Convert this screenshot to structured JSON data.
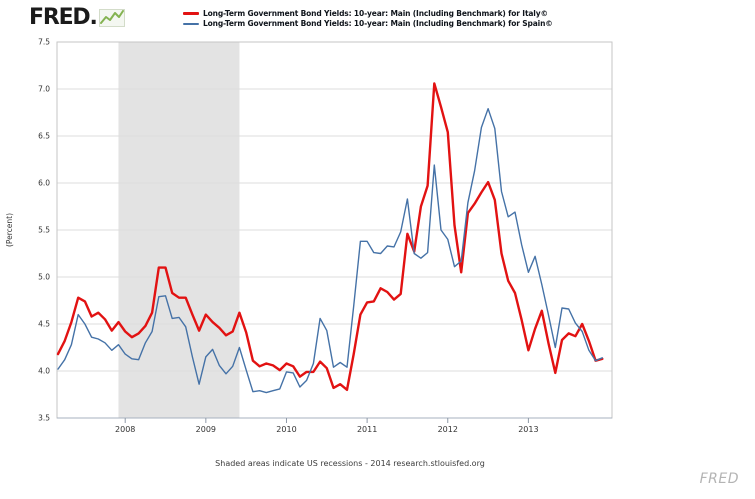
{
  "header": {
    "logo_text": "FRED."
  },
  "legend": {
    "items": [
      {
        "key": "italy",
        "label": "Long-Term Government Bond Yields: 10-year: Main (Including Benchmark) for Italy©",
        "color": "#e21212"
      },
      {
        "key": "spain",
        "label": "Long-Term Government Bond Yields: 10-year: Main (Including Benchmark) for Spain©",
        "color": "#4572a7"
      }
    ]
  },
  "footer": {
    "note": "Shaded areas indicate US recessions - 2014 research.stlouisfed.org"
  },
  "watermark": "FRED",
  "chart_data": {
    "type": "line",
    "title": "",
    "xlabel": "",
    "ylabel": "(Percent)",
    "ylim": [
      3.5,
      7.5
    ],
    "ytick_step": 0.5,
    "grid": true,
    "legend_position": "top",
    "frequency": "monthly",
    "x_start": "2007-03",
    "x_end": "2013-12",
    "x_year_ticks": [
      2008,
      2009,
      2010,
      2011,
      2012,
      2013
    ],
    "recession_band": {
      "start": "2007-12",
      "end": "2009-06",
      "color": "#e3e3e3"
    },
    "series": [
      {
        "key": "italy",
        "name": "Long-Term Government Bond Yields: 10-year: Main (Including Benchmark) for Italy©",
        "color": "#e21212",
        "width": 2.4,
        "values": [
          4.18,
          4.32,
          4.52,
          4.78,
          4.74,
          4.58,
          4.62,
          4.55,
          4.43,
          4.52,
          4.42,
          4.36,
          4.4,
          4.48,
          4.62,
          5.1,
          5.1,
          4.83,
          4.78,
          4.78,
          4.6,
          4.43,
          4.6,
          4.52,
          4.46,
          4.38,
          4.42,
          4.62,
          4.41,
          4.11,
          4.05,
          4.08,
          4.06,
          4.01,
          4.08,
          4.05,
          3.94,
          3.99,
          3.99,
          4.1,
          4.03,
          3.82,
          3.86,
          3.8,
          4.18,
          4.6,
          4.73,
          4.74,
          4.88,
          4.84,
          4.76,
          4.82,
          5.46,
          5.27,
          5.75,
          5.97,
          7.06,
          6.81,
          6.54,
          5.55,
          5.05,
          5.68,
          5.78,
          5.9,
          6.01,
          5.82,
          5.25,
          4.96,
          4.83,
          4.54,
          4.22,
          4.45,
          4.64,
          4.29,
          3.98,
          4.33,
          4.4,
          4.37,
          4.5,
          4.32,
          4.11,
          4.13
        ]
      },
      {
        "key": "spain",
        "name": "Long-Term Government Bond Yields: 10-year: Main (Including Benchmark) for Spain©",
        "color": "#4572a7",
        "width": 1.4,
        "values": [
          4.02,
          4.12,
          4.28,
          4.6,
          4.5,
          4.36,
          4.34,
          4.3,
          4.22,
          4.28,
          4.18,
          4.13,
          4.12,
          4.3,
          4.42,
          4.79,
          4.8,
          4.56,
          4.57,
          4.47,
          4.15,
          3.86,
          4.15,
          4.23,
          4.06,
          3.97,
          4.05,
          4.25,
          4.01,
          3.78,
          3.79,
          3.77,
          3.79,
          3.81,
          3.99,
          3.98,
          3.83,
          3.9,
          4.08,
          4.56,
          4.43,
          4.04,
          4.09,
          4.04,
          4.69,
          5.38,
          5.38,
          5.26,
          5.25,
          5.33,
          5.32,
          5.48,
          5.83,
          5.25,
          5.2,
          5.26,
          6.19,
          5.5,
          5.4,
          5.11,
          5.17,
          5.79,
          6.13,
          6.59,
          6.79,
          6.58,
          5.91,
          5.64,
          5.69,
          5.34,
          5.05,
          5.22,
          4.92,
          4.59,
          4.25,
          4.67,
          4.66,
          4.51,
          4.42,
          4.22,
          4.11,
          4.14
        ]
      }
    ]
  }
}
